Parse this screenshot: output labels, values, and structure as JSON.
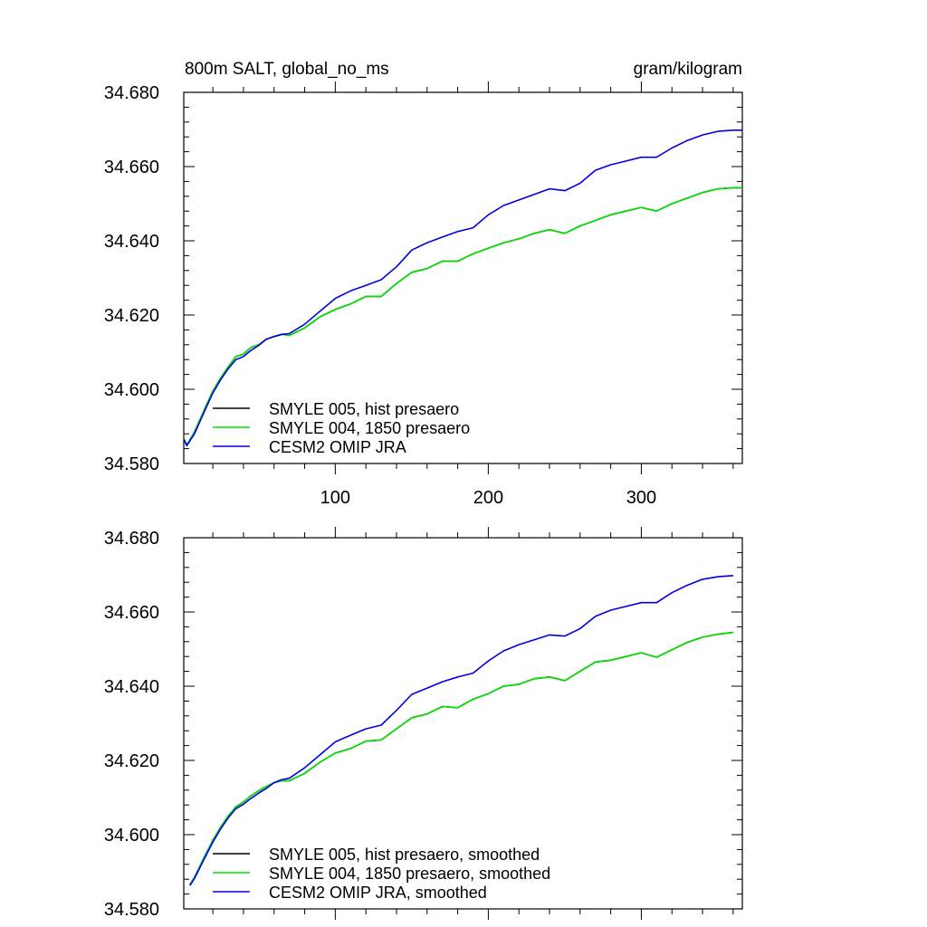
{
  "header": {
    "left_title": "800m SALT, global_no_ms",
    "right_title": "gram/kilogram"
  },
  "colors": {
    "smyle_005": "#000000",
    "smyle_004": "#00e600",
    "cesm2": "#0000e6"
  },
  "chart_data": [
    {
      "type": "line",
      "xlim": [
        1,
        366
      ],
      "ylim": [
        34.58,
        34.68
      ],
      "x_ticks": [
        100,
        200,
        300
      ],
      "x_tick_labels": [
        "100",
        "200",
        "300"
      ],
      "y_ticks": [
        34.58,
        34.6,
        34.62,
        34.64,
        34.66,
        34.68
      ],
      "y_tick_labels": [
        "34.580",
        "34.600",
        "34.620",
        "34.640",
        "34.660",
        "34.680"
      ],
      "grid": false,
      "legend_placement": "bottom-left",
      "x": [
        1,
        3,
        8,
        15,
        20,
        25,
        30,
        35,
        40,
        45,
        50,
        55,
        60,
        65,
        70,
        80,
        90,
        100,
        110,
        120,
        130,
        140,
        150,
        160,
        170,
        180,
        190,
        200,
        210,
        220,
        230,
        240,
        250,
        260,
        270,
        280,
        290,
        300,
        310,
        320,
        330,
        340,
        350,
        360,
        366
      ],
      "series": [
        {
          "name": "SMYLE 005, hist presaero",
          "color": "#000000",
          "values": [
            34.5867,
            34.585,
            34.5885,
            34.595,
            34.5995,
            34.603,
            34.606,
            34.6088,
            34.6095,
            34.6113,
            34.612,
            34.6135,
            34.6142,
            34.6148,
            34.6145,
            34.6165,
            34.6195,
            34.6215,
            34.623,
            34.625,
            34.625,
            34.6285,
            34.6315,
            34.6325,
            34.6345,
            34.6345,
            34.6365,
            34.638,
            34.6395,
            34.6405,
            34.642,
            34.643,
            34.642,
            34.644,
            34.6455,
            34.647,
            34.648,
            34.649,
            34.648,
            34.65,
            34.6515,
            34.653,
            34.654,
            34.6543,
            34.6543
          ]
        },
        {
          "name": "SMYLE 004, 1850 presaero",
          "color": "#00e600",
          "values": [
            34.5867,
            34.585,
            34.5885,
            34.595,
            34.5995,
            34.603,
            34.606,
            34.6088,
            34.6095,
            34.6113,
            34.612,
            34.6135,
            34.6142,
            34.6148,
            34.6145,
            34.6165,
            34.6195,
            34.6215,
            34.623,
            34.625,
            34.625,
            34.6285,
            34.6315,
            34.6325,
            34.6345,
            34.6345,
            34.6365,
            34.638,
            34.6395,
            34.6405,
            34.642,
            34.643,
            34.642,
            34.644,
            34.6455,
            34.647,
            34.648,
            34.649,
            34.648,
            34.65,
            34.6515,
            34.653,
            34.654,
            34.6543,
            34.6543
          ]
        },
        {
          "name": "CESM2 OMIP JRA",
          "color": "#0000e6",
          "values": [
            34.5865,
            34.5848,
            34.588,
            34.5945,
            34.599,
            34.6025,
            34.6055,
            34.608,
            34.6088,
            34.6105,
            34.6118,
            34.6135,
            34.6142,
            34.6148,
            34.615,
            34.6175,
            34.621,
            34.6245,
            34.6265,
            34.628,
            34.6295,
            34.633,
            34.6375,
            34.6395,
            34.641,
            34.6425,
            34.6435,
            34.647,
            34.6495,
            34.651,
            34.6525,
            34.654,
            34.6535,
            34.6555,
            34.659,
            34.6605,
            34.6615,
            34.6625,
            34.6625,
            34.665,
            34.667,
            34.6685,
            34.6695,
            34.6698,
            34.6698
          ]
        }
      ]
    },
    {
      "type": "line",
      "xlim": [
        1,
        366
      ],
      "ylim": [
        34.58,
        34.68
      ],
      "x_ticks": [
        100,
        200,
        300
      ],
      "x_tick_labels": [],
      "y_ticks": [
        34.58,
        34.6,
        34.62,
        34.64,
        34.66,
        34.68
      ],
      "y_tick_labels": [
        "34.580",
        "34.600",
        "34.620",
        "34.640",
        "34.660",
        "34.680"
      ],
      "grid": false,
      "legend_placement": "bottom-left",
      "x": [
        5,
        8,
        15,
        20,
        25,
        30,
        35,
        40,
        45,
        50,
        55,
        60,
        65,
        70,
        80,
        90,
        100,
        110,
        120,
        130,
        140,
        150,
        160,
        170,
        180,
        190,
        200,
        210,
        220,
        230,
        240,
        250,
        260,
        270,
        280,
        290,
        300,
        310,
        320,
        330,
        340,
        350,
        360
      ],
      "series": [
        {
          "name": "SMYLE 005, hist presaero, smoothed",
          "color": "#000000",
          "values": [
            34.5865,
            34.5885,
            34.5945,
            34.5985,
            34.602,
            34.605,
            34.6075,
            34.6088,
            34.6105,
            34.6118,
            34.613,
            34.614,
            34.6145,
            34.6145,
            34.6165,
            34.6195,
            34.622,
            34.6232,
            34.6252,
            34.6255,
            34.6285,
            34.6315,
            34.6325,
            34.6345,
            34.6342,
            34.6365,
            34.638,
            34.64,
            34.6405,
            34.642,
            34.6425,
            34.6415,
            34.644,
            34.6465,
            34.647,
            34.648,
            34.649,
            34.6478,
            34.6498,
            34.6518,
            34.6532,
            34.654,
            34.6545
          ]
        },
        {
          "name": "SMYLE 004, 1850 presaero, smoothed",
          "color": "#00e600",
          "values": [
            34.5865,
            34.5885,
            34.5945,
            34.5985,
            34.602,
            34.605,
            34.6075,
            34.6088,
            34.6105,
            34.6118,
            34.613,
            34.614,
            34.6145,
            34.6145,
            34.6165,
            34.6195,
            34.622,
            34.6232,
            34.6252,
            34.6255,
            34.6285,
            34.6315,
            34.6325,
            34.6345,
            34.6342,
            34.6365,
            34.638,
            34.64,
            34.6405,
            34.642,
            34.6425,
            34.6415,
            34.644,
            34.6465,
            34.647,
            34.648,
            34.649,
            34.6478,
            34.6498,
            34.6518,
            34.6532,
            34.654,
            34.6545
          ]
        },
        {
          "name": "CESM2 OMIP JRA, smoothed",
          "color": "#0000e6",
          "values": [
            34.5863,
            34.5882,
            34.594,
            34.598,
            34.6015,
            34.6045,
            34.607,
            34.6082,
            34.6098,
            34.6112,
            34.6125,
            34.614,
            34.6148,
            34.6152,
            34.618,
            34.6215,
            34.625,
            34.6268,
            34.6285,
            34.6295,
            34.6335,
            34.6378,
            34.6395,
            34.6412,
            34.6425,
            34.6435,
            34.6468,
            34.6495,
            34.6512,
            34.6525,
            34.6538,
            34.6535,
            34.6555,
            34.6588,
            34.6605,
            34.6615,
            34.6625,
            34.6625,
            34.6652,
            34.6672,
            34.6688,
            34.6695,
            34.6698
          ]
        }
      ]
    }
  ]
}
